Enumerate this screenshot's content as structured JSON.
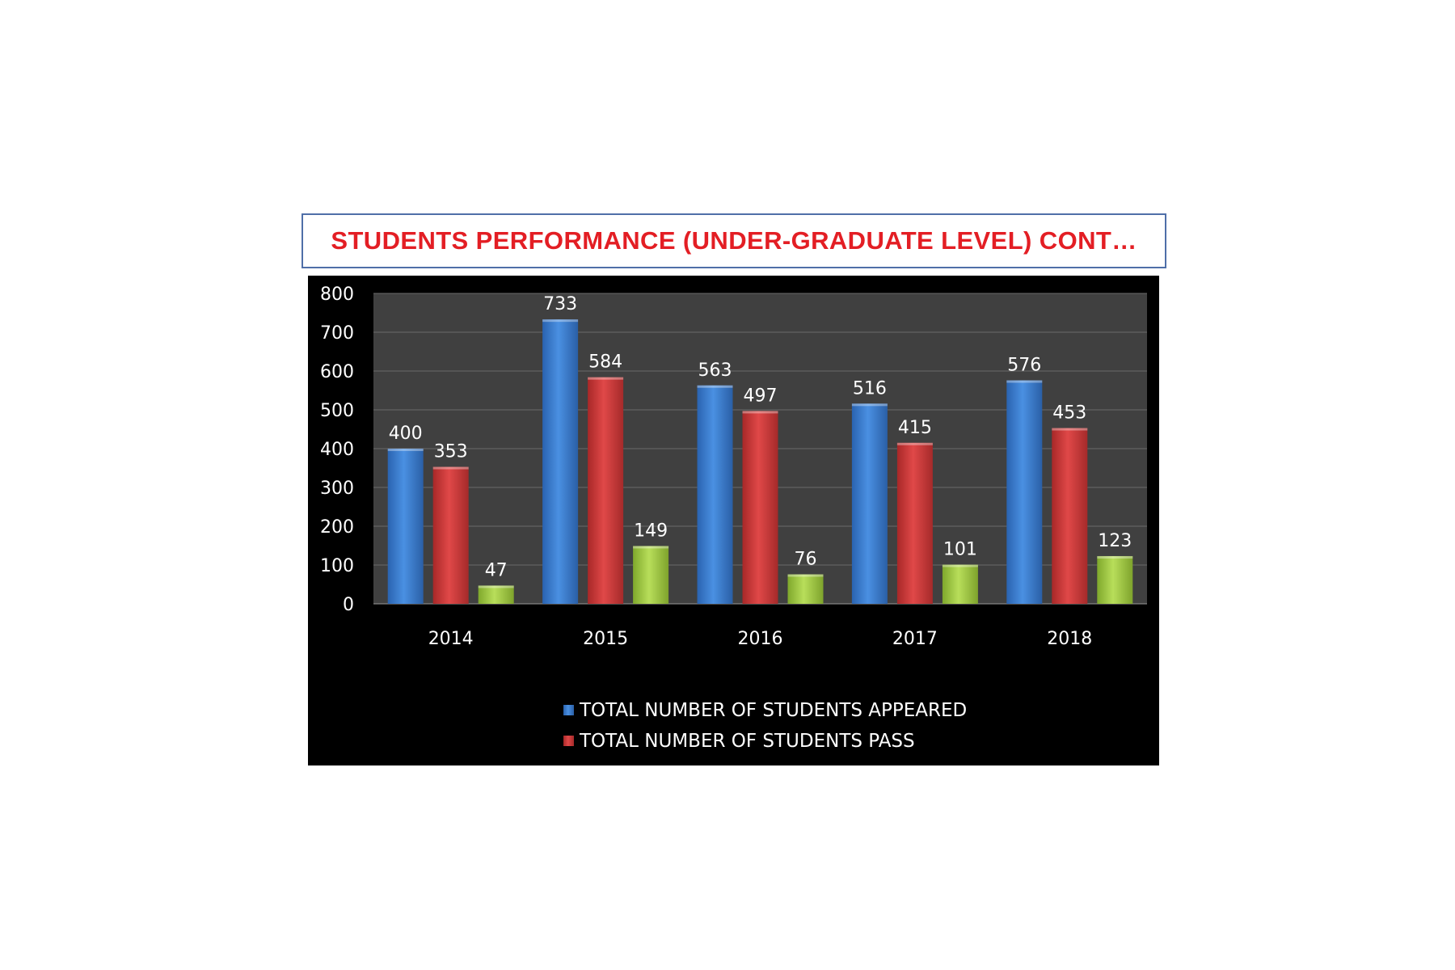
{
  "slide": {
    "title": "STUDENTS PERFORMANCE (UNDER-GRADUATE LEVEL) CONT…"
  },
  "chart_data": {
    "type": "bar",
    "categories": [
      "2014",
      "2015",
      "2016",
      "2017",
      "2018"
    ],
    "series": [
      {
        "name": "TOTAL NUMBER OF STUDENTS APPEARED",
        "color": "#3a7fd5",
        "values": [
          400,
          733,
          563,
          516,
          576
        ]
      },
      {
        "name": "TOTAL NUMBER OF STUDENTS PASS",
        "color": "#d63a3a",
        "values": [
          353,
          584,
          497,
          415,
          453
        ]
      },
      {
        "name": "",
        "color": "#a8d24a",
        "values": [
          47,
          149,
          76,
          101,
          123
        ]
      }
    ],
    "ylim": [
      0,
      800
    ],
    "yticks": [
      0,
      100,
      200,
      300,
      400,
      500,
      600,
      700,
      800
    ],
    "grid": true,
    "legend": "bottom",
    "plot_background": "#404040",
    "panel_background": "#000000"
  }
}
